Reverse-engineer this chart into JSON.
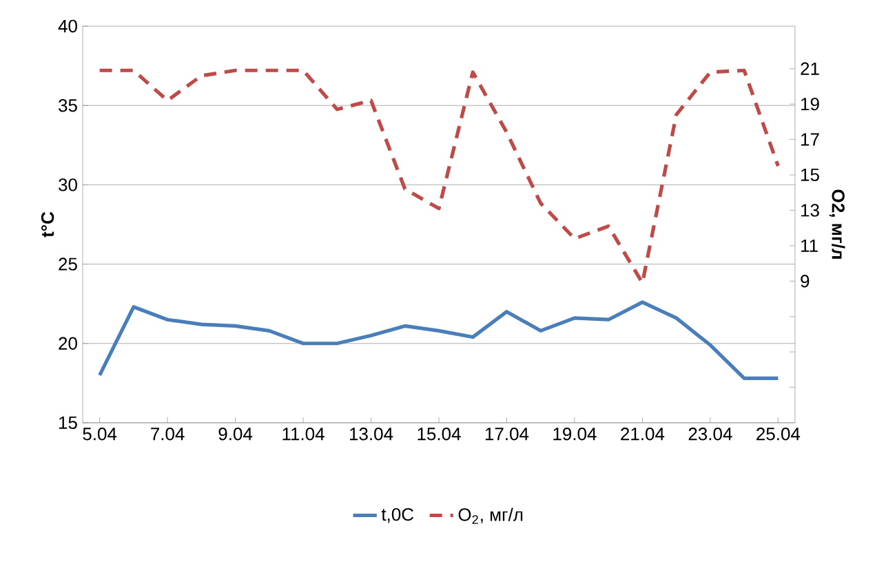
{
  "chart_data": {
    "type": "line",
    "ylabel": "t°C",
    "y2label": "O2, мг/л",
    "categories": [
      "5.04",
      null,
      "7.04",
      null,
      "9.04",
      null,
      "11.04",
      null,
      "13.04",
      null,
      "15.04",
      null,
      "17.04",
      null,
      "19.04",
      null,
      "21.04",
      null,
      "23.04",
      null,
      "25.04"
    ],
    "series": [
      {
        "name": "t,0C",
        "color": "#4a7ebb",
        "line_style": "solid",
        "values": [
          18.0,
          22.3,
          21.5,
          21.2,
          21.1,
          20.8,
          20.0,
          20.0,
          20.5,
          21.1,
          20.8,
          20.4,
          22.0,
          20.8,
          21.6,
          21.5,
          22.6,
          21.6,
          19.9,
          17.8,
          17.8
        ]
      },
      {
        "name": "O$_{2}$, мг/л",
        "color": "#be4b48",
        "line_style": "dashed",
        "axis": "y2",
        "values": [
          20.9,
          20.9,
          19.2,
          20.6,
          20.9,
          20.9,
          20.9,
          18.7,
          19.2,
          14.2,
          13.1,
          20.8,
          17.4,
          13.4,
          11.4,
          12.1,
          8.9,
          18.4,
          20.8,
          20.9,
          15.5
        ]
      }
    ],
    "ylim": [
      15,
      40
    ],
    "yticks": [
      15,
      20,
      25,
      30,
      35,
      40
    ],
    "y2lim": [
      1,
      23.4
    ],
    "y2ticks": [
      {
        "value": 3,
        "label": null
      },
      {
        "value": 5,
        "label": null
      },
      {
        "value": 7,
        "label": null
      },
      9,
      11,
      13,
      15,
      17,
      19,
      21
    ],
    "grid": "y",
    "legend": "bottom"
  }
}
